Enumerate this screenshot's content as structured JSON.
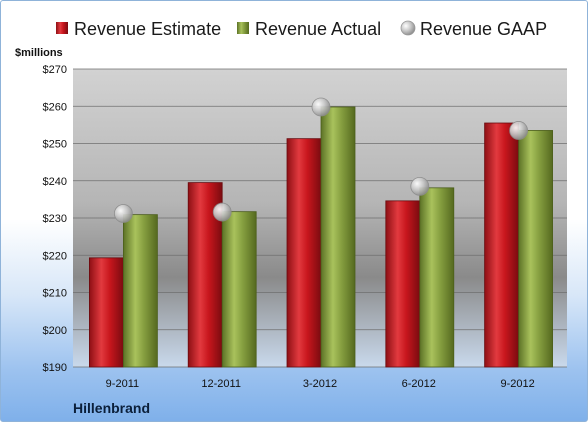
{
  "chart_data": {
    "type": "bar",
    "unit_label": "$millions",
    "company": "Hillenbrand",
    "categories": [
      "9-2011",
      "12-2011",
      "3-2012",
      "6-2012",
      "9-2012"
    ],
    "series": [
      {
        "name": "Revenue Estimate",
        "kind": "bar",
        "color": "#c8161d",
        "values": [
          219.3,
          239.5,
          251.3,
          234.6,
          255.5
        ]
      },
      {
        "name": "Revenue Actual",
        "kind": "bar",
        "color": "#7f9a3a",
        "values": [
          230.9,
          231.7,
          259.8,
          238.1,
          253.5
        ]
      },
      {
        "name": "Revenue GAAP",
        "kind": "marker",
        "color": "#b8b8b8",
        "values": [
          231.2,
          231.6,
          259.8,
          238.5,
          253.5
        ]
      }
    ],
    "yticks": [
      "$190",
      "$200",
      "$210",
      "$220",
      "$230",
      "$240",
      "$250",
      "$260",
      "$270"
    ],
    "ylim": [
      190,
      270
    ],
    "grid": true,
    "legend": "top"
  }
}
